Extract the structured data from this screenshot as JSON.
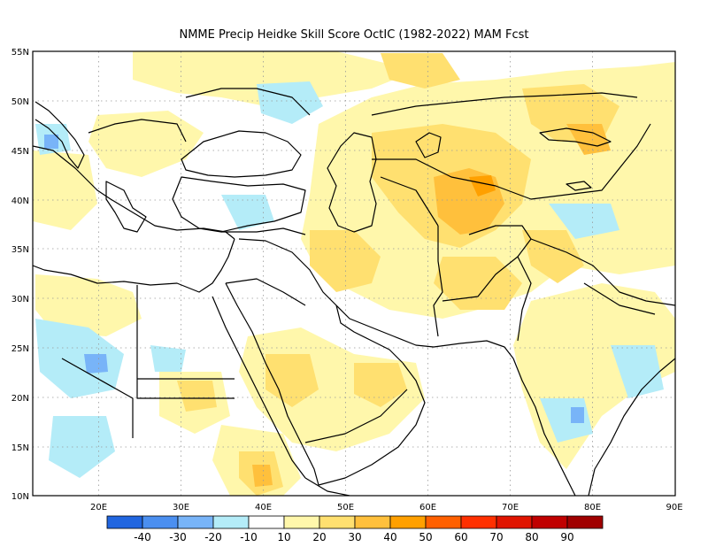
{
  "title": "NMME Precip Heidke Skill Score OctIC (1982-2022) MAM Fcst",
  "map": {
    "lon_range": [
      12,
      90
    ],
    "lat_range": [
      10,
      55
    ],
    "x_ticks": [
      "20E",
      "30E",
      "40E",
      "50E",
      "60E",
      "70E",
      "80E",
      "90E"
    ],
    "y_ticks": [
      "10N",
      "15N",
      "20N",
      "25N",
      "30N",
      "35N",
      "40N",
      "45N",
      "50N",
      "55N"
    ],
    "grid": "dotted",
    "projection": "cylindrical-equidistant"
  },
  "legend": {
    "labels": [
      "-40",
      "-30",
      "-20",
      "-10",
      "10",
      "20",
      "30",
      "40",
      "50",
      "60",
      "70",
      "80",
      "90"
    ],
    "colors": [
      "#2166e0",
      "#4b8ff0",
      "#78b4f8",
      "#b4ecf8",
      "#ffffff",
      "#fff7ab",
      "#ffe070",
      "#ffc03c",
      "#ffa000",
      "#ff6000",
      "#ff3000",
      "#e01400",
      "#c00000",
      "#a00000"
    ]
  }
}
